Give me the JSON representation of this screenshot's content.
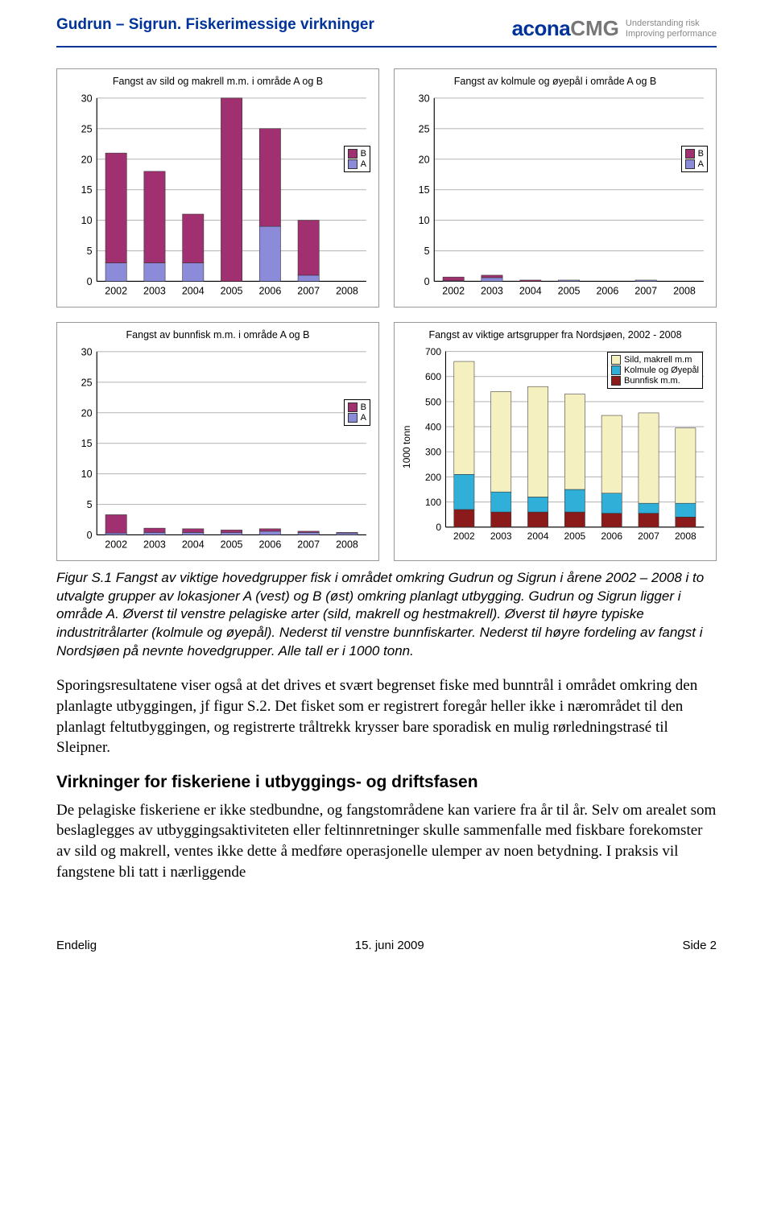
{
  "header": {
    "title": "Gudrun – Sigrun. Fiskerimessige virkninger",
    "logo_text_1": "acona",
    "logo_text_2": "CMG",
    "logo_tag_1": "Understanding risk",
    "logo_tag_2": "Improving performance"
  },
  "colors": {
    "series_A": "#8b8bd9",
    "series_B": "#a03070",
    "series_sild": "#f5f0c0",
    "series_kolmule": "#30b0d8",
    "series_bunn": "#8b1a1a",
    "grid": "#bbbbbb",
    "axis": "#000000",
    "bg": "#ffffff"
  },
  "chart1": {
    "title": "Fangst av sild og makrell m.m. i område A og B",
    "type": "stacked-bar",
    "years": [
      "2002",
      "2003",
      "2004",
      "2005",
      "2006",
      "2007",
      "2008"
    ],
    "ylim": [
      0,
      30
    ],
    "ytick_step": 5,
    "series": [
      {
        "name": "A",
        "key": "A",
        "values": [
          3,
          3,
          3,
          0,
          9,
          1,
          0
        ]
      },
      {
        "name": "B",
        "key": "B",
        "values": [
          18,
          15,
          8,
          30,
          16,
          9,
          0
        ]
      }
    ],
    "legend": [
      "B",
      "A"
    ]
  },
  "chart2": {
    "title": "Fangst av kolmule og øyepål i område A og B",
    "type": "stacked-bar",
    "years": [
      "2002",
      "2003",
      "2004",
      "2005",
      "2006",
      "2007",
      "2008"
    ],
    "ylim": [
      0,
      30
    ],
    "ytick_step": 5,
    "series": [
      {
        "name": "A",
        "key": "A",
        "values": [
          0.1,
          0.6,
          0,
          0.2,
          0,
          0.2,
          0
        ]
      },
      {
        "name": "B",
        "key": "B",
        "values": [
          0.6,
          0.4,
          0.2,
          0,
          0,
          0,
          0
        ]
      }
    ],
    "legend": [
      "B",
      "A"
    ]
  },
  "chart3": {
    "title": "Fangst av bunnfisk m.m. i område A og B",
    "type": "stacked-bar",
    "years": [
      "2002",
      "2003",
      "2004",
      "2005",
      "2006",
      "2007",
      "2008"
    ],
    "ylim": [
      0,
      30
    ],
    "ytick_step": 5,
    "series": [
      {
        "name": "A",
        "key": "A",
        "values": [
          0.3,
          0.4,
          0.4,
          0.4,
          0.6,
          0.4,
          0.3
        ]
      },
      {
        "name": "B",
        "key": "B",
        "values": [
          3.0,
          0.7,
          0.6,
          0.4,
          0.4,
          0.2,
          0.1
        ]
      }
    ],
    "legend": [
      "B",
      "A"
    ]
  },
  "chart4": {
    "title": "Fangst av viktige artsgrupper fra Nordsjøen, 2002 - 2008",
    "type": "stacked-bar",
    "ylabel": "1000 tonn",
    "years": [
      "2002",
      "2003",
      "2004",
      "2005",
      "2006",
      "2007",
      "2008"
    ],
    "ylim": [
      0,
      700
    ],
    "ytick_step": 100,
    "series": [
      {
        "name": "Bunnfisk m.m.",
        "key": "bunn",
        "values": [
          70,
          60,
          60,
          60,
          55,
          55,
          40
        ]
      },
      {
        "name": "Kolmule og Øyepål",
        "key": "kolmule",
        "values": [
          140,
          80,
          60,
          90,
          80,
          40,
          55
        ]
      },
      {
        "name": "Sild, makrell m.m",
        "key": "sild",
        "values": [
          450,
          400,
          440,
          380,
          310,
          360,
          300
        ]
      }
    ],
    "legend": [
      "Sild, makrell m.m",
      "Kolmule og Øyepål",
      "Bunnfisk m.m."
    ]
  },
  "caption": "Figur S.1 Fangst av viktige hovedgrupper fisk i området omkring Gudrun og Sigrun i årene 2002 – 2008 i to utvalgte grupper av lokasjoner A (vest) og B (øst) omkring planlagt utbygging. Gudrun og Sigrun ligger i område A. Øverst til venstre pelagiske arter (sild, makrell og hestmakrell). Øverst til høyre typiske industritrålarter (kolmule og øyepål). Nederst til venstre bunnfiskarter. Nederst til høyre fordeling av fangst i Nordsjøen på nevnte hovedgrupper. Alle tall er i 1000 tonn.",
  "para1": "Sporingsresultatene viser også at det drives et svært begrenset fiske med bunntrål i området omkring den planlagte utbyggingen, jf figur S.2. Det fisket som er registrert foregår heller ikke i nærområdet til den planlagt feltutbyggingen, og registrerte tråltrekk krysser bare sporadisk en mulig rørledningstrasé til Sleipner.",
  "section_head": "Virkninger for fiskeriene i utbyggings- og driftsfasen",
  "para2": "De pelagiske fiskeriene er ikke stedbundne, og fangstområdene kan variere fra år til år. Selv om arealet som beslaglegges av utbyggingsaktiviteten eller feltinnretninger skulle sammenfalle med fiskbare forekomster av sild og makrell, ventes ikke dette å medføre operasjonelle ulemper av noen betydning. I praksis vil fangstene bli tatt i nærliggende",
  "footer": {
    "left": "Endelig",
    "center": "15. juni 2009",
    "right": "Side 2"
  }
}
